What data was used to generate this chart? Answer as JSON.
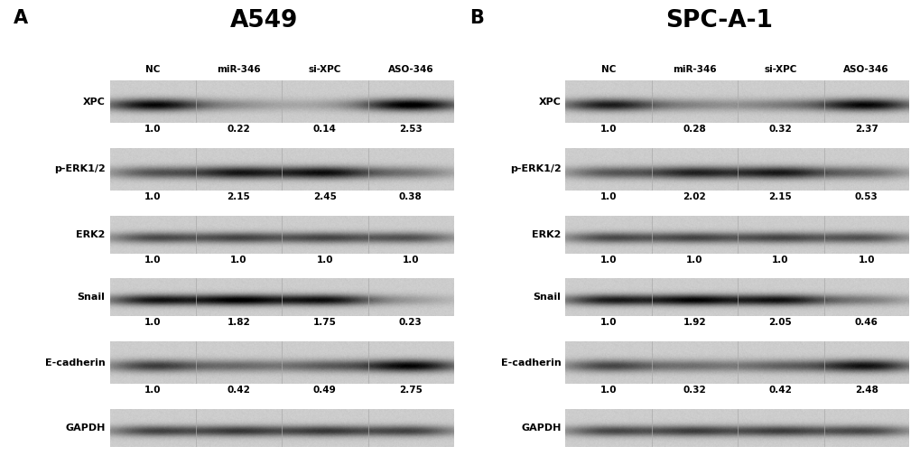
{
  "panel_A_title": "A549",
  "panel_B_title": "SPC-A-1",
  "panel_A_label": "A",
  "panel_B_label": "B",
  "columns": [
    "NC",
    "miR-346",
    "si-XPC",
    "ASO-346"
  ],
  "row_labels": [
    "XPC",
    "p-ERK1/2",
    "ERK2",
    "Snail",
    "E-cadherin",
    "GAPDH"
  ],
  "panel_A_values": [
    [
      "1.0",
      "0.22",
      "0.14",
      "2.53"
    ],
    [
      "1.0",
      "2.15",
      "2.45",
      "0.38"
    ],
    [
      "1.0",
      "1.0",
      "1.0",
      "1.0"
    ],
    [
      "1.0",
      "1.82",
      "1.75",
      "0.23"
    ],
    [
      "1.0",
      "0.42",
      "0.49",
      "2.75"
    ],
    null
  ],
  "panel_B_values": [
    [
      "1.0",
      "0.28",
      "0.32",
      "2.37"
    ],
    [
      "1.0",
      "2.02",
      "2.15",
      "0.53"
    ],
    [
      "1.0",
      "1.0",
      "1.0",
      "1.0"
    ],
    [
      "1.0",
      "1.92",
      "2.05",
      "0.46"
    ],
    [
      "1.0",
      "0.32",
      "0.42",
      "2.48"
    ],
    null
  ],
  "panel_A_band_intensities": {
    "XPC": [
      0.88,
      0.22,
      0.14,
      0.95
    ],
    "p-ERK1/2": [
      0.5,
      0.75,
      0.8,
      0.35
    ],
    "ERK2": [
      0.55,
      0.55,
      0.55,
      0.52
    ],
    "Snail": [
      0.78,
      0.85,
      0.8,
      0.18
    ],
    "E-cadherin": [
      0.62,
      0.38,
      0.44,
      0.88
    ],
    "GAPDH": [
      0.58,
      0.6,
      0.6,
      0.58
    ]
  },
  "panel_B_band_intensities": {
    "XPC": [
      0.78,
      0.26,
      0.3,
      0.88
    ],
    "p-ERK1/2": [
      0.48,
      0.7,
      0.75,
      0.4
    ],
    "ERK2": [
      0.55,
      0.55,
      0.55,
      0.52
    ],
    "Snail": [
      0.75,
      0.82,
      0.78,
      0.32
    ],
    "E-cadherin": [
      0.58,
      0.36,
      0.42,
      0.82
    ],
    "GAPDH": [
      0.56,
      0.58,
      0.58,
      0.56
    ]
  },
  "bg_color": "#ffffff",
  "box_bg_light": "#d0d0d0",
  "box_bg_dark": "#b0b0b0"
}
